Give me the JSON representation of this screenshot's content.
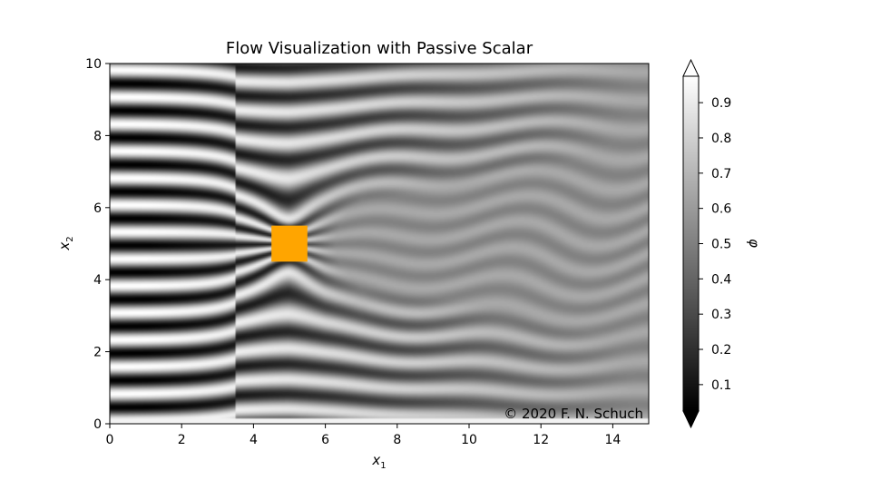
{
  "chart_data": {
    "type": "heatmap",
    "title": "Flow Visualization with Passive Scalar",
    "xlabel_base": "x",
    "xlabel_sub": "1",
    "ylabel_base": "x",
    "ylabel_sub": "2",
    "xlim": [
      0,
      15
    ],
    "ylim": [
      0,
      10
    ],
    "xticks": [
      0,
      2,
      4,
      6,
      8,
      10,
      12,
      14
    ],
    "yticks": [
      0,
      2,
      4,
      6,
      8,
      10
    ],
    "grid": false,
    "colormap": "gray",
    "obstacle": {
      "x": [
        4.5,
        5.5
      ],
      "y": [
        4.5,
        5.5
      ],
      "color": "#ffa500"
    },
    "annotation": "© 2020 F. N. Schuch",
    "colorbar": {
      "label": "φ",
      "range": [
        0.025,
        0.975
      ],
      "extend": "both",
      "ticks": [
        0.1,
        0.2,
        0.3,
        0.4,
        0.5,
        0.6,
        0.7,
        0.8,
        0.9
      ]
    }
  }
}
